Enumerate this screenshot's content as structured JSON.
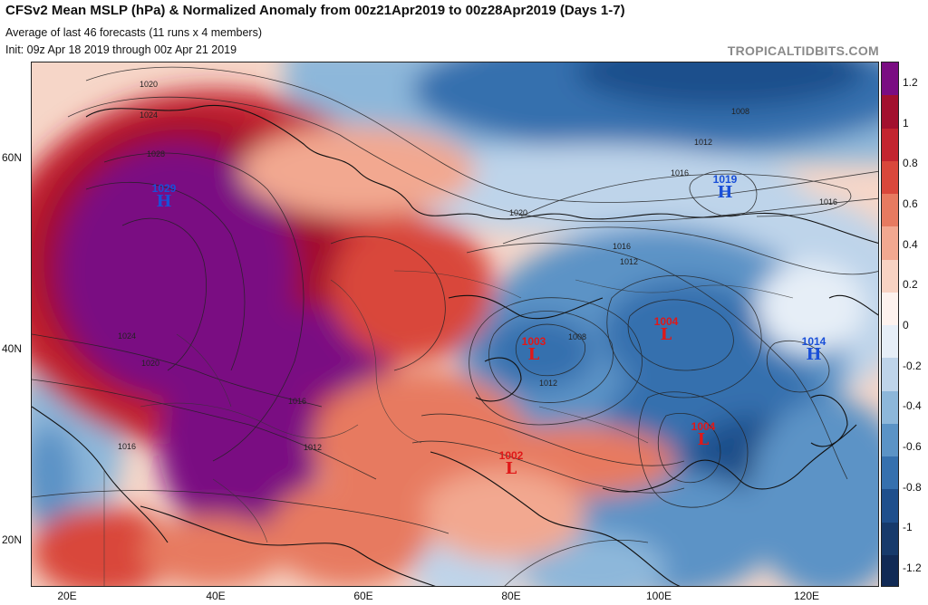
{
  "header": {
    "title": "CFSv2 Mean MSLP (hPa) & Normalized Anomaly from 00z21Apr2019 to 00z28Apr2019 (Days 1-7)",
    "subtitle": "Average of last 46 forecasts (11 runs x 4 members)",
    "init": "Init: 09z Apr 18 2019 through 00z Apr 21 2019",
    "site": "TROPICALTIDBITS.COM"
  },
  "axes": {
    "lat_labels": [
      "60N",
      "40N",
      "20N"
    ],
    "lon_labels": [
      "20E",
      "40E",
      "60E",
      "80E",
      "100E",
      "120E"
    ]
  },
  "colorbar": {
    "labels": [
      "1.2",
      "1",
      "0.8",
      "0.6",
      "0.4",
      "0.2",
      "0",
      "-0.2",
      "-0.4",
      "-0.6",
      "-0.8",
      "-1",
      "-1.2"
    ],
    "colors": [
      "#7a0d82",
      "#a2102e",
      "#c3242f",
      "#d9473b",
      "#e77a60",
      "#f2a890",
      "#f8d3c3",
      "#fdf2ee",
      "#e6eef7",
      "#bed4ea",
      "#8db7da",
      "#5b93c6",
      "#3570ae",
      "#1f4f8c",
      "#173a6b",
      "#112a55"
    ]
  },
  "systems": [
    {
      "type": "H",
      "value": "1029",
      "kind": "high"
    },
    {
      "type": "H",
      "value": "1019",
      "kind": "high"
    },
    {
      "type": "H",
      "value": "1014",
      "kind": "high"
    },
    {
      "type": "L",
      "value": "1003",
      "kind": "low"
    },
    {
      "type": "L",
      "value": "1004",
      "kind": "low"
    },
    {
      "type": "L",
      "value": "1004",
      "kind": "low"
    },
    {
      "type": "L",
      "value": "1002",
      "kind": "low"
    }
  ],
  "isobar_labels": [
    "1020",
    "1024",
    "1028",
    "1024",
    "1020",
    "1016",
    "1012",
    "1008",
    "1012",
    "1016",
    "1016",
    "1016",
    "1012",
    "1020",
    "1008",
    "1012",
    "1016"
  ]
}
